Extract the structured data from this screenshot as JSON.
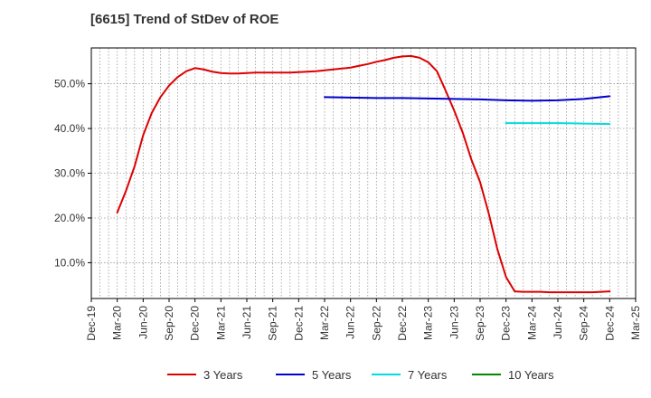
{
  "title": "[6615]  Trend of StDev of ROE",
  "colors": {
    "grid": "#999999",
    "axis": "#000000",
    "text": "#333333",
    "plot_bg": "#ffffff"
  },
  "chart_data": {
    "type": "line",
    "title": "[6615]  Trend of StDev of ROE",
    "xlabel": "",
    "ylabel": "",
    "x_ticks": [
      "Dec-19",
      "Mar-20",
      "Jun-20",
      "Sep-20",
      "Dec-20",
      "Mar-21",
      "Jun-21",
      "Sep-21",
      "Dec-21",
      "Mar-22",
      "Jun-22",
      "Sep-22",
      "Dec-22",
      "Mar-23",
      "Jun-23",
      "Sep-23",
      "Dec-23",
      "Mar-24",
      "Jun-24",
      "Sep-24",
      "Dec-24",
      "Mar-25"
    ],
    "y_ticks": [
      "10.0%",
      "20.0%",
      "30.0%",
      "40.0%",
      "50.0%"
    ],
    "y_tick_values": [
      10,
      20,
      30,
      40,
      50
    ],
    "ylim": [
      2,
      58
    ],
    "grid": true,
    "legend_position": "bottom",
    "series": [
      {
        "name": "3 Years",
        "color": "#dd0000",
        "points": [
          [
            "Mar-20",
            21.2
          ],
          [
            "Apr-20",
            26.0
          ],
          [
            "May-20",
            31.5
          ],
          [
            "Jun-20",
            38.5
          ],
          [
            "Jul-20",
            43.5
          ],
          [
            "Aug-20",
            47.0
          ],
          [
            "Sep-20",
            49.6
          ],
          [
            "Oct-20",
            51.5
          ],
          [
            "Nov-20",
            52.8
          ],
          [
            "Dec-20",
            53.5
          ],
          [
            "Jan-21",
            53.2
          ],
          [
            "Feb-21",
            52.7
          ],
          [
            "Mar-21",
            52.4
          ],
          [
            "Apr-21",
            52.3
          ],
          [
            "May-21",
            52.3
          ],
          [
            "Jun-21",
            52.4
          ],
          [
            "Jul-21",
            52.5
          ],
          [
            "Aug-21",
            52.5
          ],
          [
            "Sep-21",
            52.5
          ],
          [
            "Oct-21",
            52.5
          ],
          [
            "Nov-21",
            52.5
          ],
          [
            "Dec-21",
            52.6
          ],
          [
            "Jan-22",
            52.7
          ],
          [
            "Feb-22",
            52.8
          ],
          [
            "Mar-22",
            53.0
          ],
          [
            "Apr-22",
            53.2
          ],
          [
            "May-22",
            53.4
          ],
          [
            "Jun-22",
            53.6
          ],
          [
            "Jul-22",
            54.0
          ],
          [
            "Aug-22",
            54.4
          ],
          [
            "Sep-22",
            54.9
          ],
          [
            "Oct-22",
            55.3
          ],
          [
            "Nov-22",
            55.8
          ],
          [
            "Dec-22",
            56.1
          ],
          [
            "Jan-23",
            56.2
          ],
          [
            "Feb-23",
            55.8
          ],
          [
            "Mar-23",
            54.8
          ],
          [
            "Apr-23",
            52.8
          ],
          [
            "May-23",
            48.5
          ],
          [
            "Jun-23",
            44.0
          ],
          [
            "Jul-23",
            39.0
          ],
          [
            "Aug-23",
            33.0
          ],
          [
            "Sep-23",
            28.0
          ],
          [
            "Oct-23",
            21.0
          ],
          [
            "Nov-23",
            13.0
          ],
          [
            "Dec-23",
            6.8
          ],
          [
            "Jan-24",
            3.6
          ],
          [
            "Feb-24",
            3.5
          ],
          [
            "Mar-24",
            3.5
          ],
          [
            "Apr-24",
            3.5
          ],
          [
            "May-24",
            3.4
          ],
          [
            "Jun-24",
            3.4
          ],
          [
            "Jul-24",
            3.4
          ],
          [
            "Aug-24",
            3.4
          ],
          [
            "Sep-24",
            3.4
          ],
          [
            "Oct-24",
            3.4
          ],
          [
            "Nov-24",
            3.5
          ],
          [
            "Dec-24",
            3.6
          ]
        ]
      },
      {
        "name": "5 Years",
        "color": "#0000cc",
        "points": [
          [
            "Mar-22",
            47.0
          ],
          [
            "Jun-22",
            46.9
          ],
          [
            "Sep-22",
            46.8
          ],
          [
            "Dec-22",
            46.8
          ],
          [
            "Mar-23",
            46.7
          ],
          [
            "Jun-23",
            46.6
          ],
          [
            "Sep-23",
            46.5
          ],
          [
            "Dec-23",
            46.3
          ],
          [
            "Mar-24",
            46.2
          ],
          [
            "Jun-24",
            46.3
          ],
          [
            "Sep-24",
            46.6
          ],
          [
            "Dec-24",
            47.2
          ]
        ]
      },
      {
        "name": "7 Years",
        "color": "#00dddd",
        "points": [
          [
            "Dec-23",
            41.2
          ],
          [
            "Mar-24",
            41.2
          ],
          [
            "Jun-24",
            41.2
          ],
          [
            "Sep-24",
            41.1
          ],
          [
            "Dec-24",
            41.0
          ]
        ]
      },
      {
        "name": "10 Years",
        "color": "#008800",
        "points": []
      }
    ]
  }
}
